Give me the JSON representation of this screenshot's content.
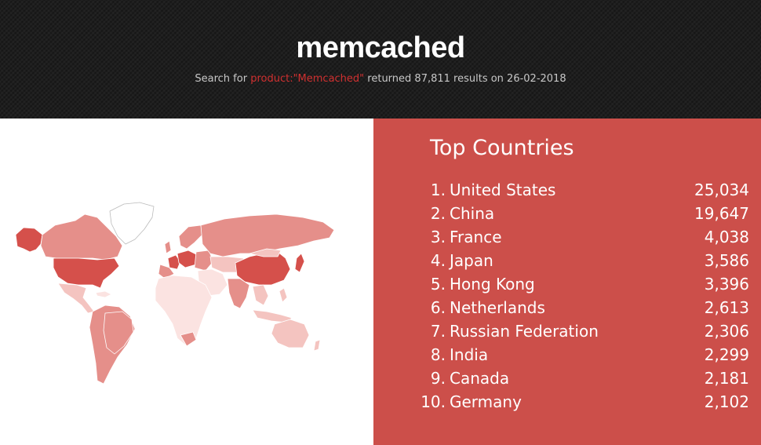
{
  "header": {
    "title": "memcached",
    "subtitle_prefix": "Search for ",
    "subtitle_query": "product:\"Memcached\"",
    "subtitle_suffix": " returned 87,811 results on 26-02-2018"
  },
  "top_countries": {
    "title": "Top Countries",
    "items": [
      {
        "rank": "1.",
        "country": "United States",
        "count": "25,034"
      },
      {
        "rank": "2.",
        "country": "China",
        "count": "19,647"
      },
      {
        "rank": "3.",
        "country": "France",
        "count": "4,038"
      },
      {
        "rank": "4.",
        "country": "Japan",
        "count": "3,586"
      },
      {
        "rank": "5.",
        "country": "Hong Kong",
        "count": "3,396"
      },
      {
        "rank": "6.",
        "country": "Netherlands",
        "count": "2,613"
      },
      {
        "rank": "7.",
        "country": "Russian Federation",
        "count": "2,306"
      },
      {
        "rank": "8.",
        "country": "India",
        "count": "2,299"
      },
      {
        "rank": "9.",
        "country": "Canada",
        "count": "2,181"
      },
      {
        "rank": "10.",
        "country": "Germany",
        "count": "2,102"
      }
    ]
  },
  "colors": {
    "header_bg": "#1e1e1e",
    "panel_bg": "#cc4f4a",
    "query_red": "#d03030",
    "map_dark": "#d5504b",
    "map_mid": "#e58f8a",
    "map_light": "#f4c4c0",
    "map_pale": "#fbe3e1"
  }
}
